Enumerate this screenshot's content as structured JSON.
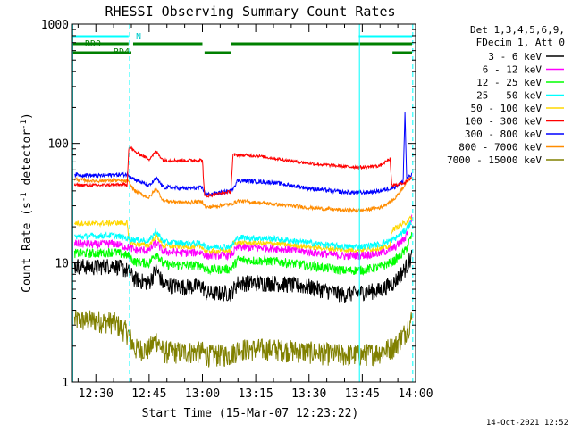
{
  "chart_data": {
    "type": "line",
    "title": "RHESSI Observing Summary Count Rates",
    "xlabel": "Start Time (15-Mar-07 12:23:22)",
    "ylabel_main": "Count Rate (s",
    "ylabel_sup1": "-1",
    "ylabel_mid": " detector",
    "ylabel_sup2": "-1",
    "ylabel_end": ")",
    "x_unit": "minutes after 12:00 UT",
    "xlim": [
      23.4,
      120.0
    ],
    "ylim": [
      1,
      1000
    ],
    "yscale": "log",
    "x_ticks": [
      {
        "value": 30,
        "label": "12:30"
      },
      {
        "value": 45,
        "label": "12:45"
      },
      {
        "value": 60,
        "label": "13:00"
      },
      {
        "value": 75,
        "label": "13:15"
      },
      {
        "value": 90,
        "label": "13:30"
      },
      {
        "value": 105,
        "label": "13:45"
      },
      {
        "value": 120,
        "label": "14:00"
      }
    ],
    "y_ticks": [
      {
        "value": 1,
        "label": "1"
      },
      {
        "value": 10,
        "label": "10"
      },
      {
        "value": 100,
        "label": "100"
      },
      {
        "value": 1000,
        "label": "1000"
      }
    ],
    "legend_header": [
      "Det 1,3,4,5,6,9,",
      "FDecim 1, Att 0"
    ],
    "legend_position": "right",
    "footer_date": "14-Oct-2021 12:52",
    "flags": {
      "n_label": "N",
      "rd0_label": "RD0",
      "rd4_label": "RD4",
      "n_segments": [
        [
          23.4,
          39.2
        ],
        [
          104.0,
          119.0
        ]
      ],
      "rd0_segments": [
        [
          23.4,
          39.2
        ],
        [
          40.5,
          60.0
        ],
        [
          68.0,
          104.0
        ],
        [
          104.0,
          119.0
        ]
      ],
      "rd4_segments": [
        [
          23.4,
          40.0
        ],
        [
          60.6,
          68.0
        ],
        [
          113.5,
          119.0
        ]
      ],
      "vlines_solid": [
        23.5,
        104.2
      ],
      "vlines_dashed": [
        39.5,
        119.2
      ]
    },
    "series": [
      {
        "name": "3 - 6 keV",
        "color": "#000000",
        "values": [
          [
            24,
            9.5
          ],
          [
            30,
            9.2
          ],
          [
            35,
            9.6
          ],
          [
            39,
            8.6
          ],
          [
            41,
            7.3
          ],
          [
            45,
            6.8
          ],
          [
            47,
            8.9
          ],
          [
            49,
            6.6
          ],
          [
            55,
            6.3
          ],
          [
            60,
            6.4
          ],
          [
            61,
            5.6
          ],
          [
            68,
            5.6
          ],
          [
            70,
            6.8
          ],
          [
            80,
            6.8
          ],
          [
            90,
            6.3
          ],
          [
            100,
            5.4
          ],
          [
            105,
            5.7
          ],
          [
            110,
            5.9
          ],
          [
            114,
            6.9
          ],
          [
            117,
            8.9
          ],
          [
            119,
            11.5
          ]
        ]
      },
      {
        "name": "6 - 12 keV",
        "color": "#ff00ff",
        "values": [
          [
            24,
            14.5
          ],
          [
            30,
            14.2
          ],
          [
            35,
            14.5
          ],
          [
            39,
            13.5
          ],
          [
            41,
            12.8
          ],
          [
            45,
            12.7
          ],
          [
            47,
            14.8
          ],
          [
            49,
            12.4
          ],
          [
            55,
            12.1
          ],
          [
            60,
            12.2
          ],
          [
            61,
            11.4
          ],
          [
            68,
            11.6
          ],
          [
            70,
            13.5
          ],
          [
            80,
            13.3
          ],
          [
            90,
            12.3
          ],
          [
            100,
            11.4
          ],
          [
            105,
            11.6
          ],
          [
            110,
            12.0
          ],
          [
            114,
            13.4
          ],
          [
            117,
            16.0
          ],
          [
            119,
            24.0
          ]
        ]
      },
      {
        "name": "12 - 25 keV",
        "color": "#00ff00",
        "values": [
          [
            24,
            12.0
          ],
          [
            30,
            12.0
          ],
          [
            35,
            12.3
          ],
          [
            39,
            11.5
          ],
          [
            41,
            10.2
          ],
          [
            45,
            9.9
          ],
          [
            47,
            12.2
          ],
          [
            49,
            9.7
          ],
          [
            55,
            9.5
          ],
          [
            60,
            9.5
          ],
          [
            61,
            8.7
          ],
          [
            68,
            8.9
          ],
          [
            70,
            10.6
          ],
          [
            80,
            10.3
          ],
          [
            90,
            9.5
          ],
          [
            100,
            8.6
          ],
          [
            105,
            8.7
          ],
          [
            110,
            9.2
          ],
          [
            114,
            10.4
          ],
          [
            117,
            12.5
          ],
          [
            119,
            17.0
          ]
        ]
      },
      {
        "name": "25 - 50 keV",
        "color": "#00ffff",
        "values": [
          [
            24,
            16.5
          ],
          [
            30,
            16.8
          ],
          [
            35,
            17.0
          ],
          [
            39,
            16.0
          ],
          [
            41,
            15.6
          ],
          [
            45,
            15.3
          ],
          [
            47,
            18.5
          ],
          [
            49,
            14.9
          ],
          [
            55,
            14.6
          ],
          [
            60,
            14.5
          ],
          [
            61,
            13.6
          ],
          [
            68,
            13.7
          ],
          [
            70,
            16.3
          ],
          [
            80,
            15.9
          ],
          [
            90,
            14.7
          ],
          [
            100,
            13.6
          ],
          [
            105,
            13.7
          ],
          [
            110,
            14.3
          ],
          [
            114,
            15.8
          ],
          [
            117,
            18.6
          ],
          [
            119,
            22.0
          ]
        ]
      },
      {
        "name": "50 - 100 keV",
        "color": "#ffd700",
        "values": [
          [
            24,
            21.5
          ],
          [
            30,
            21.3
          ],
          [
            35,
            21.6
          ],
          [
            38.8,
            21.5
          ],
          [
            39.3,
            15.0
          ],
          [
            41,
            14.3
          ],
          [
            45,
            14.0
          ],
          [
            47,
            17.0
          ],
          [
            49,
            13.8
          ],
          [
            55,
            13.6
          ],
          [
            60,
            13.6
          ],
          [
            60.6,
            12.5
          ],
          [
            68,
            12.6
          ],
          [
            68.6,
            14.7
          ],
          [
            80,
            14.5
          ],
          [
            90,
            13.6
          ],
          [
            100,
            12.8
          ],
          [
            105,
            12.8
          ],
          [
            110,
            13.3
          ],
          [
            112.8,
            13.6
          ],
          [
            113.3,
            18.8
          ],
          [
            117,
            21.5
          ],
          [
            119,
            24.0
          ]
        ]
      },
      {
        "name": "100 - 300 keV",
        "color": "#ff0000",
        "values": [
          [
            24,
            45.0
          ],
          [
            30,
            44.5
          ],
          [
            35,
            45.0
          ],
          [
            38.8,
            45.0
          ],
          [
            39.3,
            95.0
          ],
          [
            41,
            85.0
          ],
          [
            45,
            74.0
          ],
          [
            47,
            86.0
          ],
          [
            49,
            72.0
          ],
          [
            55,
            72.0
          ],
          [
            60,
            72.5
          ],
          [
            60.6,
            36.0
          ],
          [
            68,
            39.5
          ],
          [
            68.6,
            80.0
          ],
          [
            75,
            79.0
          ],
          [
            80,
            75.0
          ],
          [
            90,
            68.0
          ],
          [
            100,
            64.0
          ],
          [
            105,
            63.0
          ],
          [
            110,
            65.0
          ],
          [
            112.8,
            74.0
          ],
          [
            113.3,
            44.0
          ],
          [
            117,
            47.0
          ],
          [
            119,
            52.0
          ]
        ]
      },
      {
        "name": "300 - 800 keV",
        "color": "#0000ff",
        "values": [
          [
            24,
            55.0
          ],
          [
            30,
            53.5
          ],
          [
            35,
            54.5
          ],
          [
            39,
            55.0
          ],
          [
            41,
            50.0
          ],
          [
            45,
            44.0
          ],
          [
            47,
            51.0
          ],
          [
            49,
            43.0
          ],
          [
            55,
            42.0
          ],
          [
            60,
            42.5
          ],
          [
            61,
            37.0
          ],
          [
            68,
            40.0
          ],
          [
            70,
            49.0
          ],
          [
            80,
            47.0
          ],
          [
            90,
            42.0
          ],
          [
            100,
            39.0
          ],
          [
            105,
            38.5
          ],
          [
            110,
            40.0
          ],
          [
            114,
            43.0
          ],
          [
            116.5,
            48.0
          ],
          [
            117,
            180.0
          ],
          [
            117.5,
            50.0
          ],
          [
            119,
            55.0
          ]
        ]
      },
      {
        "name": "800 - 7000 keV",
        "color": "#ff8c00",
        "values": [
          [
            24,
            50.0
          ],
          [
            30,
            48.5
          ],
          [
            35,
            49.0
          ],
          [
            39,
            48.0
          ],
          [
            41,
            40.0
          ],
          [
            45,
            35.0
          ],
          [
            47,
            42.0
          ],
          [
            49,
            33.0
          ],
          [
            55,
            32.0
          ],
          [
            60,
            32.5
          ],
          [
            61,
            29.0
          ],
          [
            68,
            31.0
          ],
          [
            70,
            33.0
          ],
          [
            80,
            31.0
          ],
          [
            90,
            29.0
          ],
          [
            100,
            27.5
          ],
          [
            105,
            27.5
          ],
          [
            110,
            29.0
          ],
          [
            114,
            34.0
          ],
          [
            117,
            45.0
          ],
          [
            119,
            54.0
          ]
        ]
      },
      {
        "name": "7000 - 15000 keV",
        "color": "#808000",
        "values": [
          [
            24,
            3.3
          ],
          [
            30,
            3.3
          ],
          [
            35,
            3.2
          ],
          [
            39,
            2.6
          ],
          [
            41,
            1.9
          ],
          [
            45,
            1.9
          ],
          [
            47,
            2.3
          ],
          [
            49,
            1.8
          ],
          [
            55,
            1.8
          ],
          [
            60,
            1.8
          ],
          [
            61,
            1.7
          ],
          [
            68,
            1.7
          ],
          [
            70,
            1.9
          ],
          [
            80,
            1.9
          ],
          [
            90,
            1.8
          ],
          [
            100,
            1.7
          ],
          [
            105,
            1.7
          ],
          [
            110,
            1.8
          ],
          [
            114,
            2.0
          ],
          [
            117,
            2.6
          ],
          [
            119,
            3.4
          ]
        ]
      }
    ]
  }
}
